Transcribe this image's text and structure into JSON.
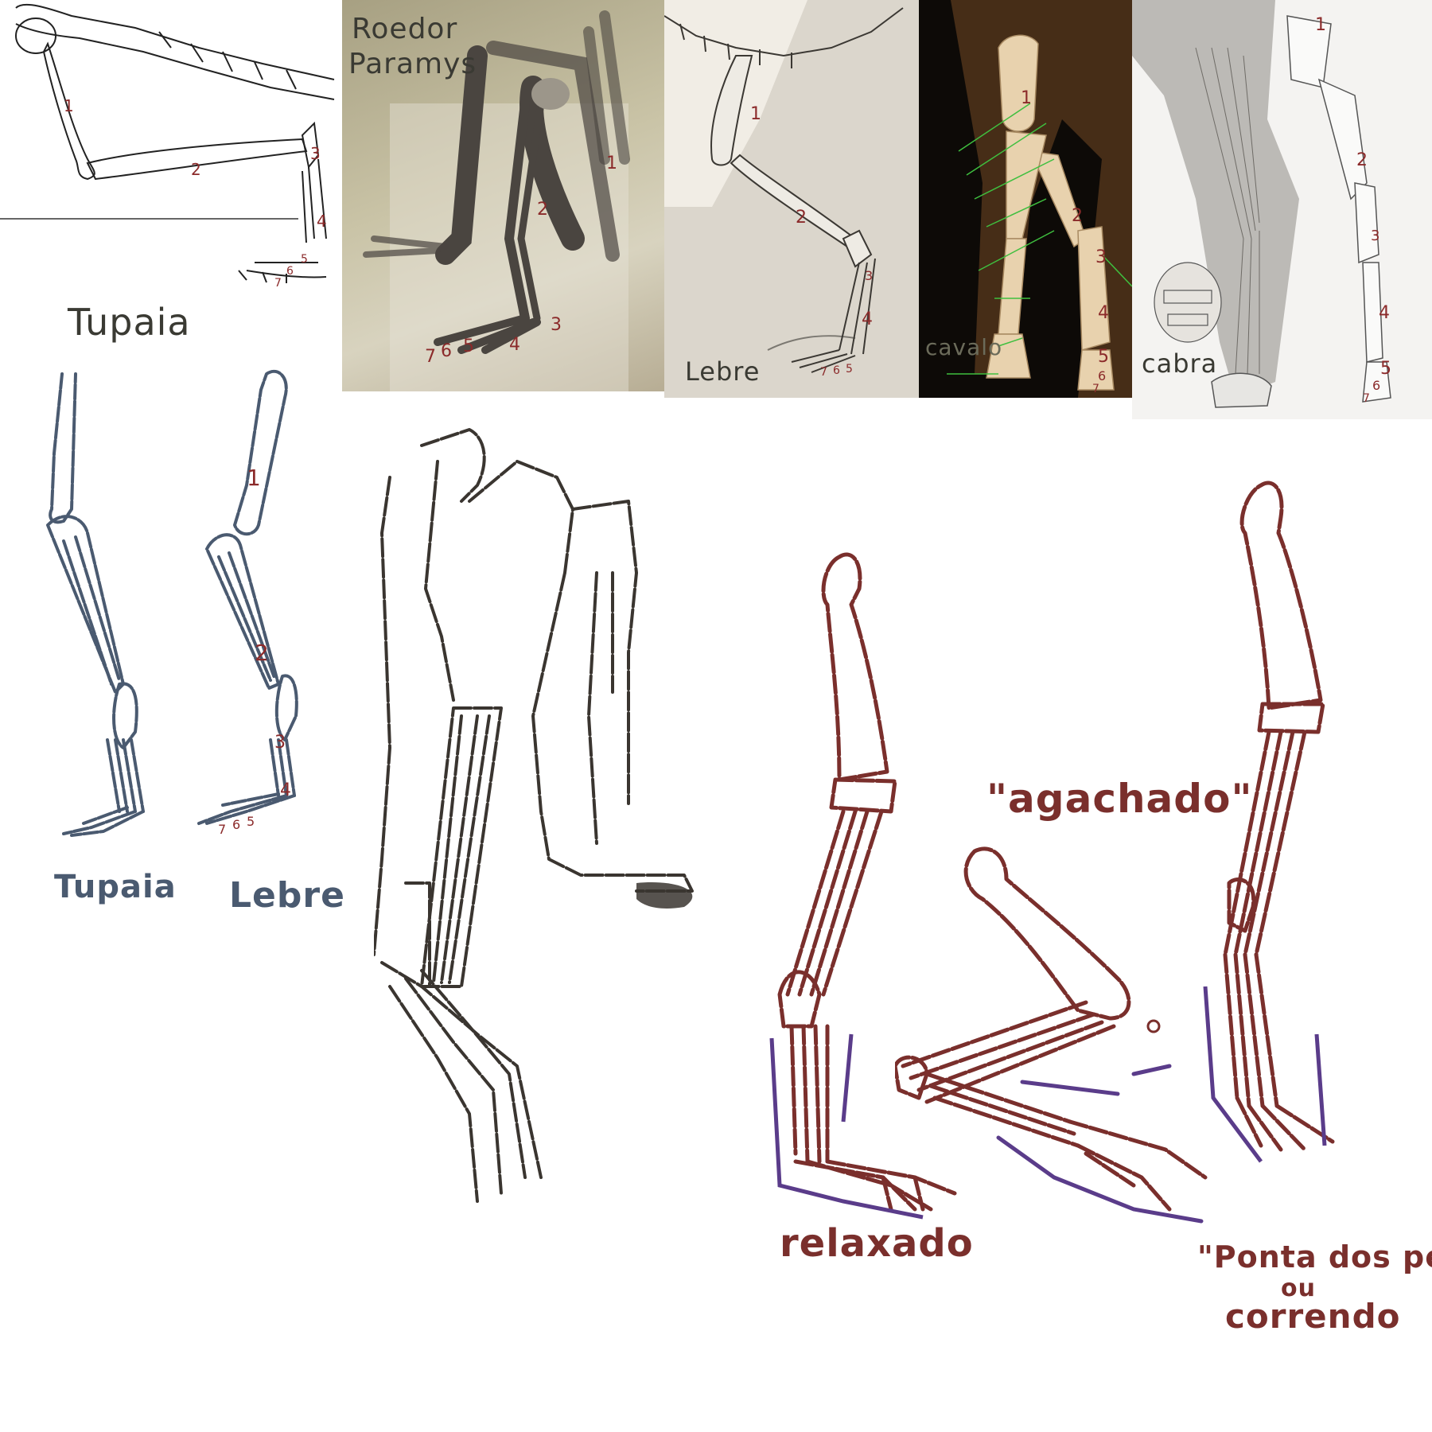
{
  "colors": {
    "bone_red": "#7a2f2c",
    "slate_blue": "#4a5a70",
    "pencil": "#3a3530",
    "purple": "#5a3c8a",
    "green_guides": "#3fbf3f",
    "label_gray": "#3a3a33"
  },
  "panels": {
    "tupaia_skeleton": {
      "caption": "Tupaia",
      "numbers": [
        "1",
        "2",
        "3",
        "4",
        "5",
        "6",
        "7"
      ]
    },
    "paramys_fossil": {
      "caption_line1": "Roedor",
      "caption_line2": "Paramys",
      "numbers": [
        "1",
        "2",
        "3",
        "4",
        "5",
        "6",
        "7"
      ]
    },
    "lebre_skeleton": {
      "caption": "Lebre",
      "numbers": [
        "1",
        "2",
        "3",
        "4",
        "5",
        "6",
        "7"
      ]
    },
    "cavalo_skeleton": {
      "caption": "cavalo",
      "numbers": [
        "1",
        "2",
        "3",
        "4",
        "5",
        "6",
        "7"
      ]
    },
    "cabra_anatomy": {
      "caption": "cabra",
      "numbers": [
        "1",
        "2",
        "3",
        "4",
        "5",
        "6",
        "7"
      ]
    }
  },
  "sketches": {
    "tupaia_leg": {
      "caption": "Tupaia"
    },
    "lebre_leg": {
      "caption": "Lebre",
      "numbers": [
        "1",
        "2",
        "3",
        "4",
        "5",
        "6",
        "7"
      ]
    },
    "relaxado_leg": {
      "caption": "relaxado"
    },
    "agachado_leg": {
      "caption": "\"agachado\""
    },
    "running_leg": {
      "caption_line1": "\"Ponta dos pés\"",
      "caption_line2": "ou",
      "caption_line3": "correndo"
    }
  }
}
